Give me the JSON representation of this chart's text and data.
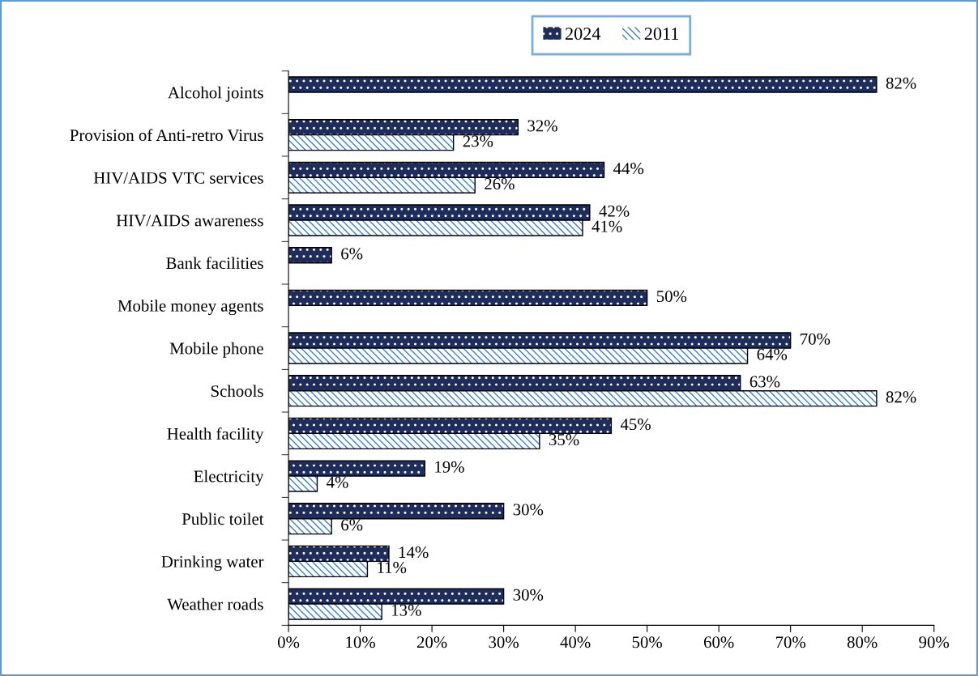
{
  "chart_data": {
    "type": "bar",
    "orientation": "horizontal",
    "categories": [
      "Alcohol joints",
      "Provision of Anti-retro Virus",
      "HIV/AIDS VTC services",
      "HIV/AIDS awareness",
      "Bank facilities",
      "Mobile money agents",
      "Mobile phone",
      "Schools",
      "Health facility",
      "Electricity",
      "Public toilet",
      "Drinking water",
      "Weather roads"
    ],
    "series": [
      {
        "name": "2024",
        "color": "#1f2d5c",
        "values": [
          82,
          32,
          44,
          42,
          6,
          50,
          70,
          63,
          45,
          19,
          30,
          14,
          30
        ],
        "value_labels": [
          "82%",
          "32%",
          "44%",
          "42%",
          "6%",
          "50%",
          "70%",
          "63%",
          "45%",
          "19%",
          "30%",
          "14%",
          "30%"
        ]
      },
      {
        "name": "2011",
        "color": "#3a7fd0",
        "values": [
          null,
          23,
          26,
          41,
          null,
          null,
          64,
          82,
          35,
          4,
          6,
          11,
          13
        ],
        "value_labels": [
          null,
          "23%",
          "26%",
          "41%",
          null,
          null,
          "64%",
          "82%",
          "35%",
          "4%",
          "6%",
          "11%",
          "13%"
        ]
      }
    ],
    "xlim": [
      0,
      90
    ],
    "xticks": [
      {
        "value": 0,
        "label": "0%"
      },
      {
        "value": 10,
        "label": "10%"
      },
      {
        "value": 20,
        "label": "20%"
      },
      {
        "value": 30,
        "label": "30%"
      },
      {
        "value": 40,
        "label": "40%"
      },
      {
        "value": 50,
        "label": "50%"
      },
      {
        "value": 60,
        "label": "60%"
      },
      {
        "value": 70,
        "label": "70%"
      },
      {
        "value": 80,
        "label": "80%"
      },
      {
        "value": 90,
        "label": "90%"
      }
    ],
    "legend": "top",
    "grid": false
  }
}
